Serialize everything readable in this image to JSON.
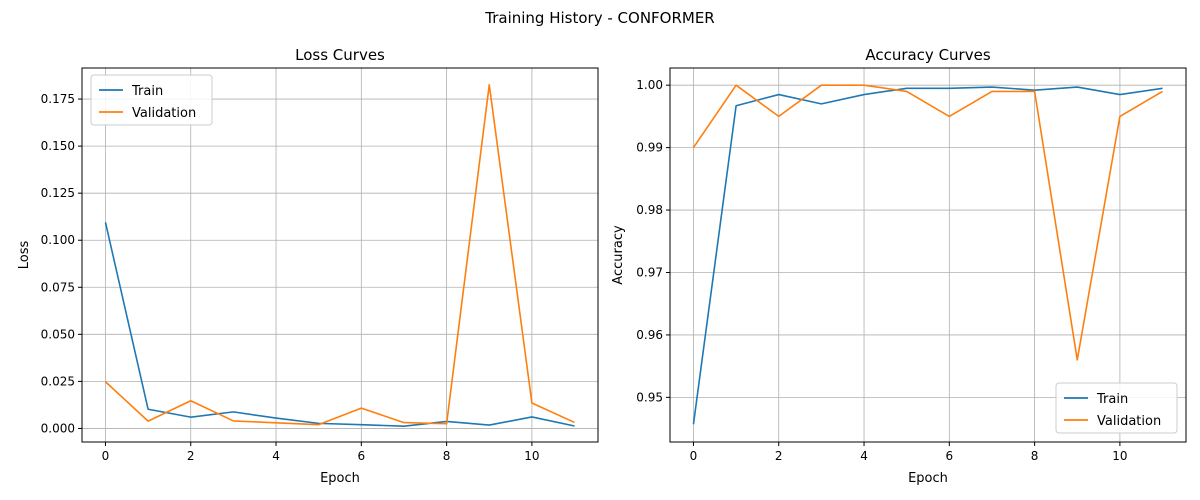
{
  "figure": {
    "suptitle": "Training History - CONFORMER"
  },
  "chart_data": [
    {
      "type": "line",
      "title": "Loss Curves",
      "xlabel": "Epoch",
      "ylabel": "Loss",
      "x": [
        0,
        1,
        2,
        3,
        4,
        5,
        6,
        7,
        8,
        9,
        10,
        11
      ],
      "xlim": [
        -0.55,
        11.55
      ],
      "ylim": [
        -0.0072,
        0.1915
      ],
      "xticks": [
        0,
        2,
        4,
        6,
        8,
        10
      ],
      "xticklabels": [
        "0",
        "2",
        "4",
        "6",
        "8",
        "10"
      ],
      "yticks": [
        0,
        0.025,
        0.05,
        0.075,
        0.1,
        0.125,
        0.15,
        0.175
      ],
      "yticklabels": [
        "0.000",
        "0.025",
        "0.050",
        "0.075",
        "0.100",
        "0.125",
        "0.150",
        "0.175"
      ],
      "grid": true,
      "legend_position": "top-left",
      "series": [
        {
          "name": "Train",
          "color": "#1f77b4",
          "values": [
            0.1095,
            0.0102,
            0.006,
            0.0088,
            0.0055,
            0.0027,
            0.002,
            0.0012,
            0.0037,
            0.0018,
            0.0061,
            0.0013
          ]
        },
        {
          "name": "Validation",
          "color": "#ff7f0e",
          "values": [
            0.0248,
            0.0039,
            0.0147,
            0.004,
            0.003,
            0.002,
            0.0108,
            0.0031,
            0.0025,
            0.1826,
            0.0135,
            0.0032
          ]
        }
      ]
    },
    {
      "type": "line",
      "title": "Accuracy Curves",
      "xlabel": "Epoch",
      "ylabel": "Accuracy",
      "x": [
        0,
        1,
        2,
        3,
        4,
        5,
        6,
        7,
        8,
        9,
        10,
        11
      ],
      "xlim": [
        -0.55,
        11.55
      ],
      "ylim": [
        0.94285,
        1.00275
      ],
      "xticks": [
        0,
        2,
        4,
        6,
        8,
        10
      ],
      "xticklabels": [
        "0",
        "2",
        "4",
        "6",
        "8",
        "10"
      ],
      "yticks": [
        0.95,
        0.96,
        0.97,
        0.98,
        0.99,
        1.0
      ],
      "yticklabels": [
        "0.95",
        "0.96",
        "0.97",
        "0.98",
        "0.99",
        "1.00"
      ],
      "grid": true,
      "legend_position": "bottom-right",
      "series": [
        {
          "name": "Train",
          "color": "#1f77b4",
          "values": [
            0.9457,
            0.9967,
            0.9985,
            0.997,
            0.9985,
            0.9995,
            0.9995,
            0.9997,
            0.9992,
            0.9997,
            0.9985,
            0.9995
          ]
        },
        {
          "name": "Validation",
          "color": "#ff7f0e",
          "values": [
            0.99,
            1.0,
            0.995,
            1.0,
            1.0,
            0.999,
            0.995,
            0.999,
            0.999,
            0.956,
            0.995,
            0.999
          ]
        }
      ]
    }
  ]
}
